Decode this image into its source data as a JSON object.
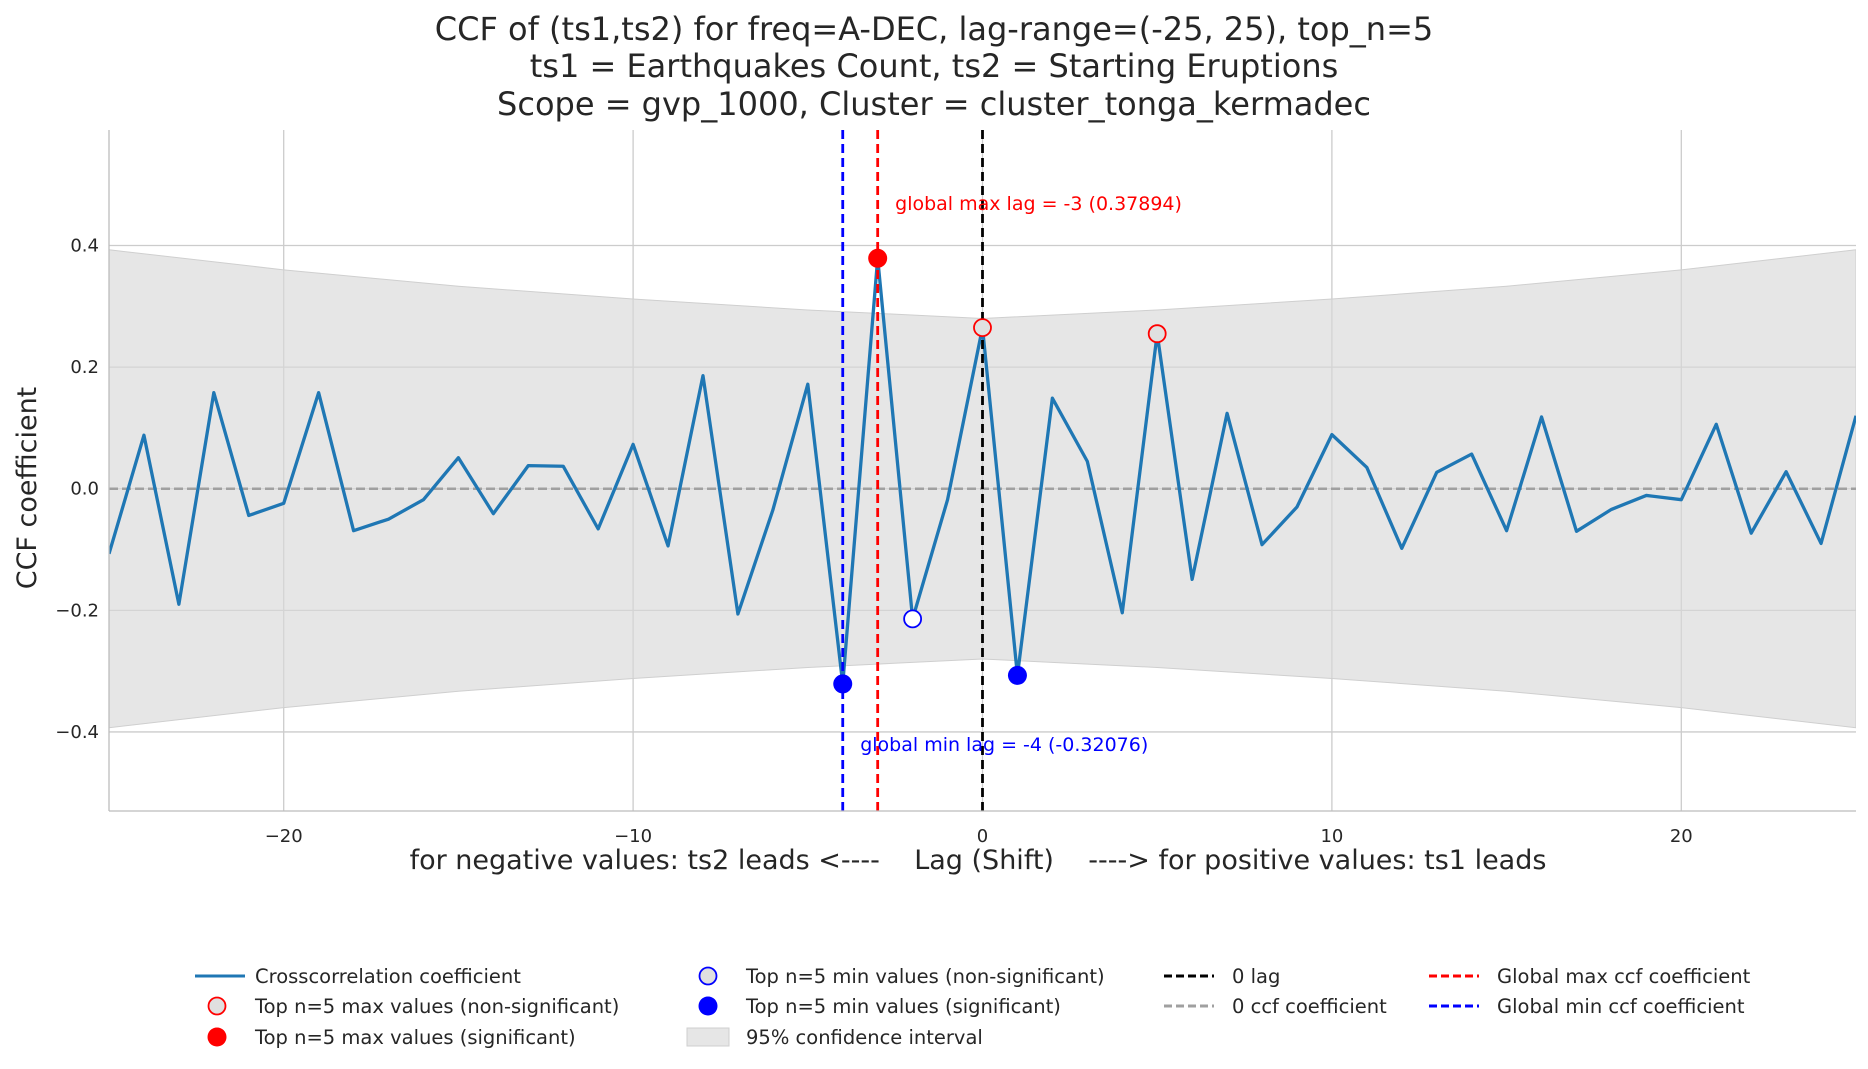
{
  "chart_data": {
    "type": "line",
    "title_lines": [
      "CCF of (ts1,ts2) for freq=A-DEC, lag-range=(-25, 25), top_n=5",
      "ts1 = Earthquakes Count, ts2 = Starting Eruptions",
      "Scope = gvp_1000, Cluster = cluster_tonga_kermadec"
    ],
    "xlabel": "for negative values: ts2 leads <----    Lag (Shift)    ----> for positive values: ts1 leads",
    "ylabel": "CCF coefficient",
    "xlim": [
      -25,
      25
    ],
    "ylim": [
      -0.53,
      0.59
    ],
    "xticks": [
      -20,
      -10,
      0,
      10,
      20
    ],
    "xtick_labels": [
      "−20",
      "−10",
      "0",
      "10",
      "20"
    ],
    "yticks": [
      -0.4,
      -0.2,
      0.0,
      0.2,
      0.4
    ],
    "ytick_labels": [
      "−0.4",
      "−0.2",
      "0.0",
      "0.2",
      "0.4"
    ],
    "grid": true,
    "legend_position": "below",
    "series": [
      {
        "name": "Crosscorrelation coefficient",
        "color": "#1f77b4",
        "x": [
          -25,
          -24,
          -23,
          -22,
          -21,
          -20,
          -19,
          -18,
          -17,
          -16,
          -15,
          -14,
          -13,
          -12,
          -11,
          -10,
          -9,
          -8,
          -7,
          -6,
          -5,
          -4,
          -3,
          -2,
          -1,
          0,
          1,
          2,
          3,
          4,
          5,
          6,
          7,
          8,
          9,
          10,
          11,
          12,
          13,
          14,
          15,
          16,
          17,
          18,
          19,
          20,
          21,
          22,
          23,
          24,
          25
        ],
        "values": [
          -0.107,
          0.088,
          -0.19,
          0.158,
          -0.044,
          -0.024,
          0.158,
          -0.069,
          -0.05,
          -0.018,
          0.051,
          -0.041,
          0.038,
          0.037,
          -0.066,
          0.073,
          -0.094,
          0.186,
          -0.206,
          -0.035,
          0.172,
          -0.321,
          0.379,
          -0.214,
          -0.018,
          0.265,
          -0.307,
          0.149,
          0.045,
          -0.204,
          0.255,
          -0.149,
          0.124,
          -0.092,
          -0.03,
          0.089,
          0.035,
          -0.098,
          0.027,
          0.057,
          -0.069,
          0.118,
          -0.07,
          -0.034,
          -0.011,
          -0.018,
          0.106,
          -0.073,
          0.028,
          -0.09,
          0.12
        ]
      }
    ],
    "confidence_interval": {
      "name": "95% confidence interval",
      "color": "#e5e5e5",
      "x": [
        -25,
        -20,
        -15,
        -10,
        -5,
        0,
        5,
        10,
        15,
        20,
        25
      ],
      "upper": [
        0.393,
        0.36,
        0.333,
        0.312,
        0.294,
        0.28,
        0.294,
        0.312,
        0.333,
        0.36,
        0.393
      ]
    },
    "top_max_nonsig": {
      "name": "Top n=5 max values (non-significant)",
      "x": [
        0,
        5
      ],
      "values": [
        0.265,
        0.255
      ]
    },
    "top_max_sig": {
      "name": "Top n=5 max values (significant)",
      "x": [
        -3
      ],
      "values": [
        0.379
      ]
    },
    "top_min_nonsig": {
      "name": "Top n=5 min values (non-significant)",
      "x": [
        -2
      ],
      "values": [
        -0.214
      ]
    },
    "top_min_sig": {
      "name": "Top n=5 min values (significant)",
      "x": [
        -4,
        1
      ],
      "values": [
        -0.321,
        -0.307
      ]
    },
    "vlines": [
      {
        "name": "0 lag",
        "x": 0,
        "color": "#000000"
      },
      {
        "name": "Global max ccf coefficient",
        "x": -3,
        "color": "#ff0000"
      },
      {
        "name": "Global min ccf coefficient",
        "x": -4,
        "color": "#0000ff"
      }
    ],
    "hlines": [
      {
        "name": "0 ccf coefficient",
        "y": 0,
        "color": "#a0a0a0"
      }
    ],
    "annotations": [
      {
        "text": "global max lag = -3 (0.37894)",
        "x": -2.5,
        "y": 0.47,
        "color": "#ff0000"
      },
      {
        "text": "global min lag = -4 (-0.32076)",
        "x": -3.5,
        "y": -0.42,
        "color": "#0000ff"
      }
    ]
  }
}
